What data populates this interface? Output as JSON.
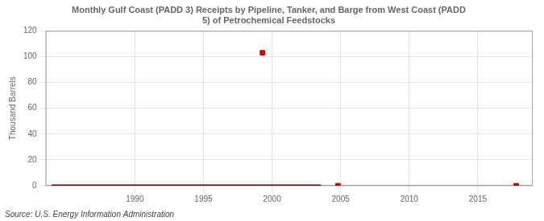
{
  "chart_data": {
    "type": "scatter",
    "title": "Monthly Gulf Coast (PADD 3) Receipts by Pipeline, Tanker, and Barge from West Coast (PADD\n5) of Petrochemical Feedstocks",
    "y_label": "Thousand Barrels",
    "annotation": "Source: U.S. Energy Information Administration",
    "series": [
      {
        "type": "line",
        "color": "#8b0000",
        "x": [
          1984,
          2003.5
        ],
        "values": [
          0,
          0
        ]
      },
      {
        "type": "scatter",
        "color": "#cc0000",
        "marker": "square",
        "x": [
          1999.3
        ],
        "values": [
          103
        ]
      },
      {
        "type": "scatter",
        "color": "#cc0000",
        "marker": "square",
        "x": [
          2004.8
        ],
        "values": [
          0
        ]
      },
      {
        "type": "scatter",
        "color": "#cc0000",
        "marker": "square",
        "x": [
          2017.8
        ],
        "values": [
          0
        ]
      }
    ],
    "xlim": [
      1983.5,
      2019
    ],
    "xticks": [
      1990,
      1995,
      2000,
      2005,
      2010,
      2015
    ],
    "ylim": [
      0,
      120
    ],
    "yticks": [
      0,
      20,
      40,
      60,
      80,
      100,
      120
    ],
    "grid": true
  }
}
